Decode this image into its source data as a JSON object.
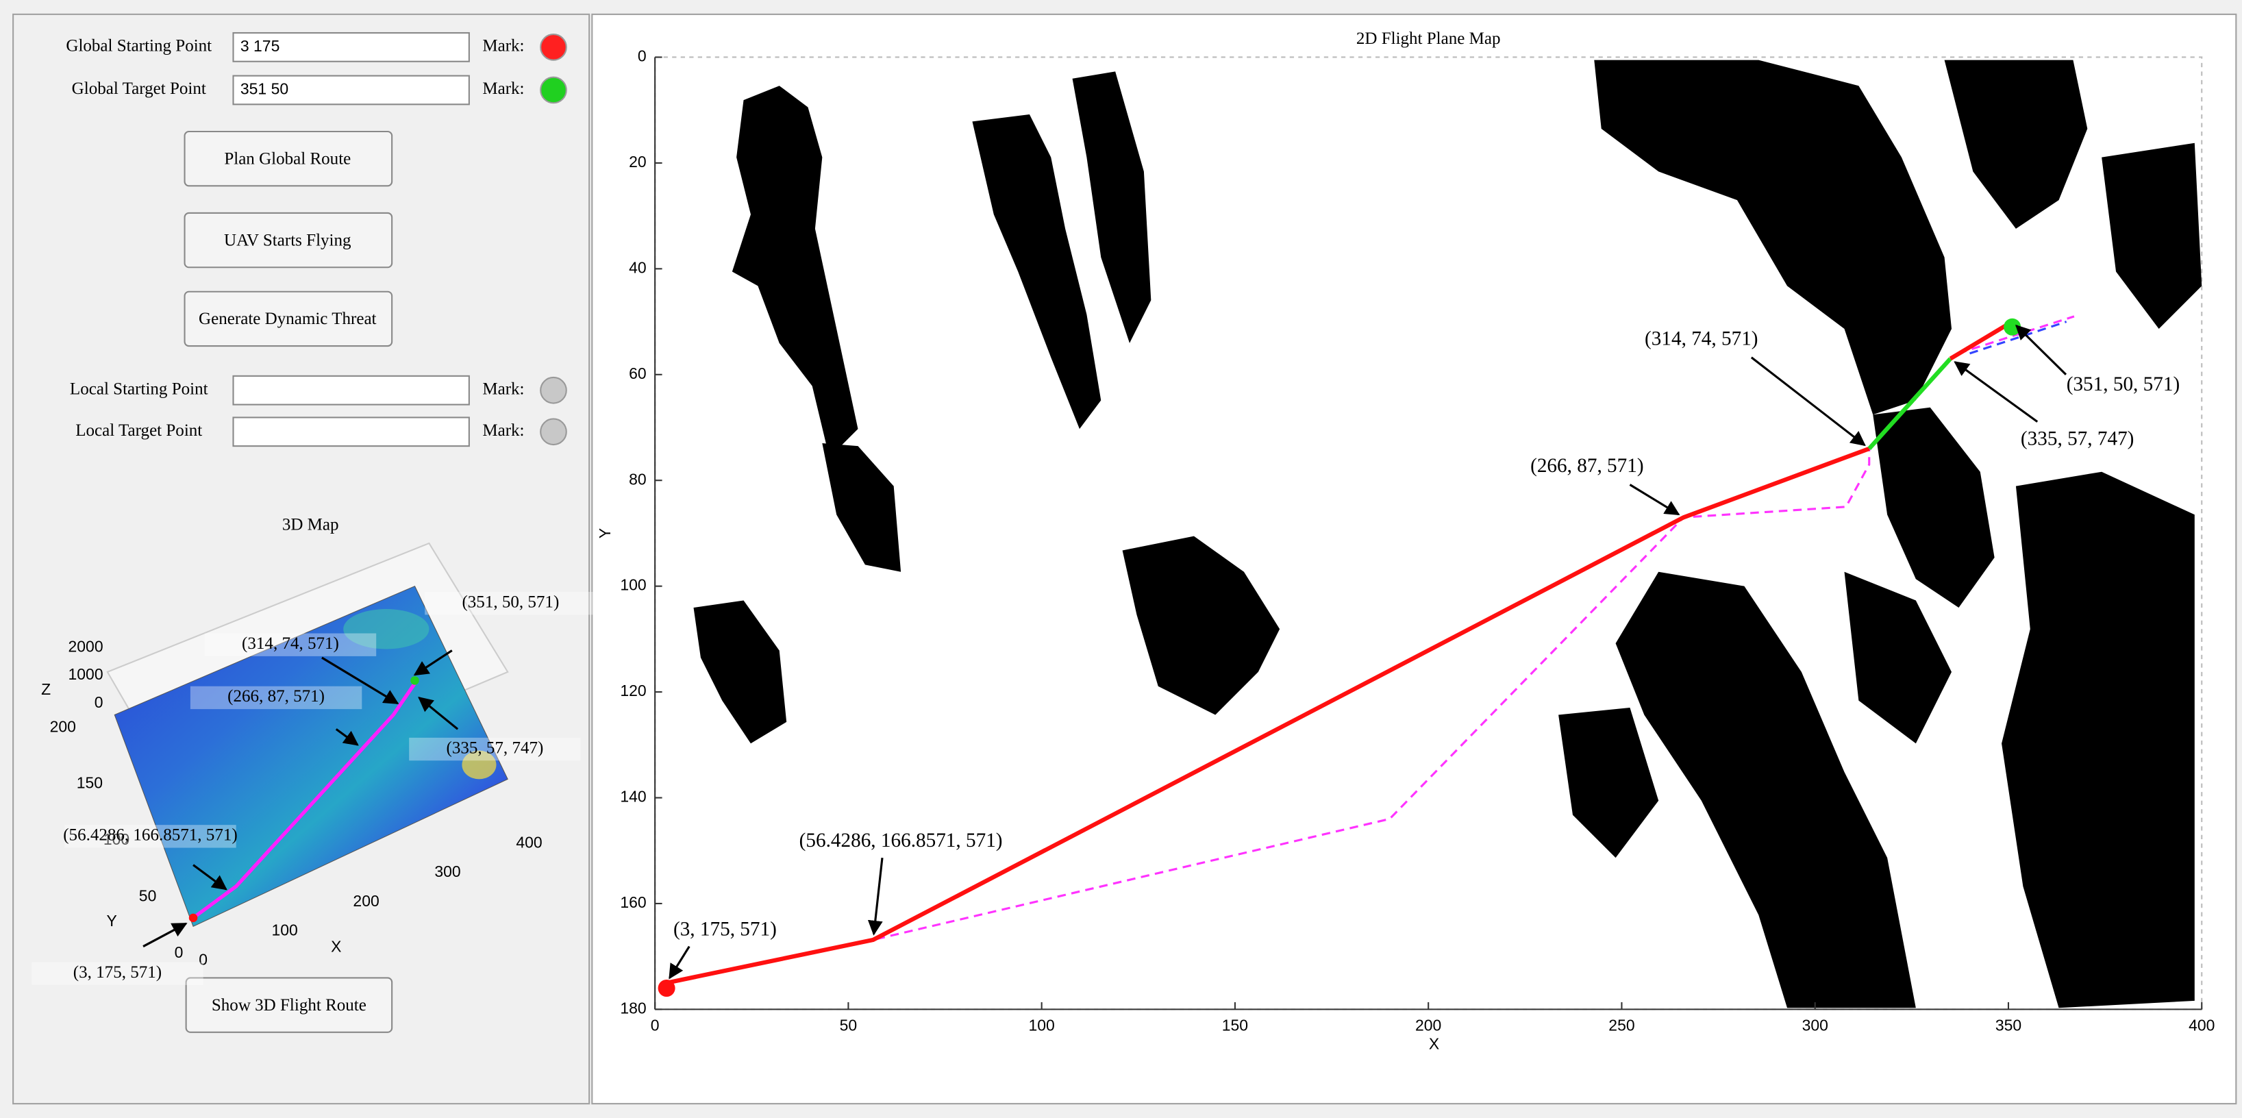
{
  "panel": {
    "fields": [
      {
        "label": "Global Starting Point",
        "value": "3 175",
        "mark": "Mark:",
        "color": "#ff2020"
      },
      {
        "label": "Global Target Point",
        "value": "351 50",
        "mark": "Mark:",
        "color": "#20d020"
      },
      {
        "label": "Local Starting Point",
        "mark": "Mark:",
        "color": "#c8c8c8"
      },
      {
        "label": "Local Target Point",
        "mark": "Mark:",
        "color": "#c8c8c8"
      }
    ],
    "buttons": [
      "Plan Global Route",
      "UAV Starts Flying",
      "Generate Dynamic Threat"
    ],
    "bottom_button": "Show 3D Flight Route"
  },
  "map3d": {
    "title": "3D Map",
    "xlabel": "X",
    "ylabel": "Y",
    "zlabel": "Z",
    "xticks": [
      0,
      100,
      200,
      300,
      400
    ],
    "yticks": [
      0,
      50,
      100,
      150,
      200
    ],
    "zticks": [
      0,
      1000,
      2000
    ],
    "annotations": [
      "(3, 175, 571)",
      "(56.4286, 166.8571, 571)",
      "(266, 87, 571)",
      "(314, 74, 571)",
      "(351, 50, 571)",
      "(335, 57, 747)"
    ]
  },
  "chart_data": {
    "type": "line",
    "title": "2D Flight Plane Map",
    "xlabel": "X",
    "ylabel": "Y",
    "xlim": [
      0,
      400
    ],
    "ylim": [
      180,
      0
    ],
    "xticks": [
      0,
      50,
      100,
      150,
      200,
      250,
      300,
      350,
      400
    ],
    "yticks": [
      0,
      20,
      40,
      60,
      80,
      100,
      120,
      140,
      160,
      180
    ],
    "series": [
      {
        "color": "#ff33ff",
        "dash": true,
        "x": [
          3,
          56.4286,
          190,
          266,
          308,
          314,
          314
        ],
        "values": [
          175,
          166.8571,
          144,
          87,
          85,
          77,
          74
        ]
      },
      {
        "color": "#ff33ff",
        "dash": true,
        "x": [
          337,
          367
        ],
        "values": [
          56,
          49
        ]
      },
      {
        "color": "#3344ff",
        "dash": true,
        "x": [
          340,
          365
        ],
        "values": [
          56,
          50
        ]
      },
      {
        "color": "#ff1010",
        "dash": false,
        "x": [
          3,
          56.4286,
          266,
          314
        ],
        "values": [
          175,
          166.8571,
          87,
          74
        ]
      },
      {
        "color": "#22dd22",
        "dash": false,
        "x": [
          314,
          335
        ],
        "values": [
          74,
          57
        ]
      },
      {
        "color": "#ff1010",
        "dash": false,
        "x": [
          335,
          351
        ],
        "values": [
          57,
          50
        ]
      }
    ],
    "markers": [
      {
        "color": "#ff1010",
        "x": 3,
        "y": 176
      },
      {
        "color": "#22dd22",
        "x": 351,
        "y": 51
      }
    ],
    "annotations": [
      {
        "text": "(3, 175, 571)",
        "x": 3,
        "y": 175
      },
      {
        "text": "(56.4286, 166.8571, 571)",
        "x": 56.4286,
        "y": 166.8571
      },
      {
        "text": "(266, 87, 571)",
        "x": 266,
        "y": 87
      },
      {
        "text": "(314, 74, 571)",
        "x": 314,
        "y": 74
      },
      {
        "text": "(351, 50, 571)",
        "x": 351,
        "y": 50
      },
      {
        "text": "(335, 57, 747)",
        "x": 335,
        "y": 57
      }
    ]
  }
}
